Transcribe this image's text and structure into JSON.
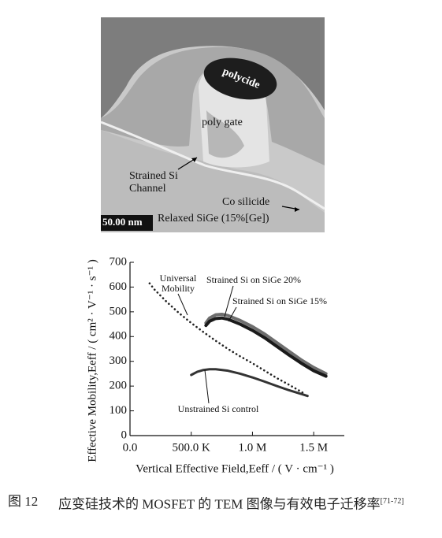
{
  "tem_image": {
    "polycide": "polycide",
    "poly_gate": "poly gate",
    "strained_si": "Strained Si",
    "channel": "Channel",
    "co_silicide": "Co silicide",
    "scale": "50.00 nm",
    "relaxed_sige": "Relaxed SiGe (15%[Ge])"
  },
  "chart_data": {
    "type": "line",
    "xlabel": "Vertical Effective Field,Eeff / ( V · cm⁻¹ )",
    "ylabel": "Effective Mobility,Eeff / ( cm² · V⁻¹ · s⁻¹ )",
    "xlim": [
      0,
      1750000
    ],
    "ylim": [
      0,
      700
    ],
    "xticks": [
      {
        "value": 0,
        "label": "0.0"
      },
      {
        "value": 500000,
        "label": "500.0 K"
      },
      {
        "value": 1000000,
        "label": "1.0 M"
      },
      {
        "value": 1500000,
        "label": "1.5 M"
      }
    ],
    "yticks": [
      0,
      100,
      200,
      300,
      400,
      500,
      600,
      700
    ],
    "series": [
      {
        "name": "Universal Mobility",
        "color": "#222222",
        "style": "dotted",
        "x": [
          160000,
          200000,
          300000,
          400000,
          500000,
          600000,
          700000,
          800000,
          900000,
          1000000,
          1100000,
          1200000,
          1300000,
          1430000
        ],
        "values": [
          615,
          590,
          540,
          495,
          455,
          418,
          383,
          350,
          320,
          292,
          262,
          232,
          205,
          168
        ]
      },
      {
        "name": "Strained Si on SiGe 20%",
        "color": "#6e6e6e",
        "style": "solid",
        "x": [
          620000,
          650000,
          700000,
          750000,
          800000,
          900000,
          1000000,
          1100000,
          1200000,
          1300000,
          1400000,
          1500000,
          1600000
        ],
        "values": [
          455,
          475,
          488,
          490,
          485,
          465,
          440,
          410,
          375,
          340,
          305,
          275,
          250
        ]
      },
      {
        "name": "Strained Si on SiGe 15%",
        "color": "#1a1a1a",
        "style": "solid",
        "x": [
          620000,
          650000,
          700000,
          750000,
          800000,
          900000,
          1000000,
          1100000,
          1200000,
          1300000,
          1400000,
          1500000,
          1600000
        ],
        "values": [
          445,
          462,
          473,
          475,
          470,
          450,
          425,
          395,
          360,
          325,
          292,
          262,
          240
        ]
      },
      {
        "name": "Unstrained Si control",
        "color": "#333333",
        "style": "solid",
        "x": [
          500000,
          550000,
          600000,
          650000,
          700000,
          800000,
          900000,
          1000000,
          1100000,
          1200000,
          1300000,
          1400000,
          1450000
        ],
        "values": [
          245,
          258,
          265,
          268,
          268,
          262,
          250,
          235,
          218,
          200,
          183,
          168,
          160
        ]
      }
    ]
  },
  "caption": {
    "number": "图 12",
    "text": "应变硅技术的 MOSFET 的 TEM 图像与有效电子迁移率",
    "ref": "[71-72]"
  }
}
